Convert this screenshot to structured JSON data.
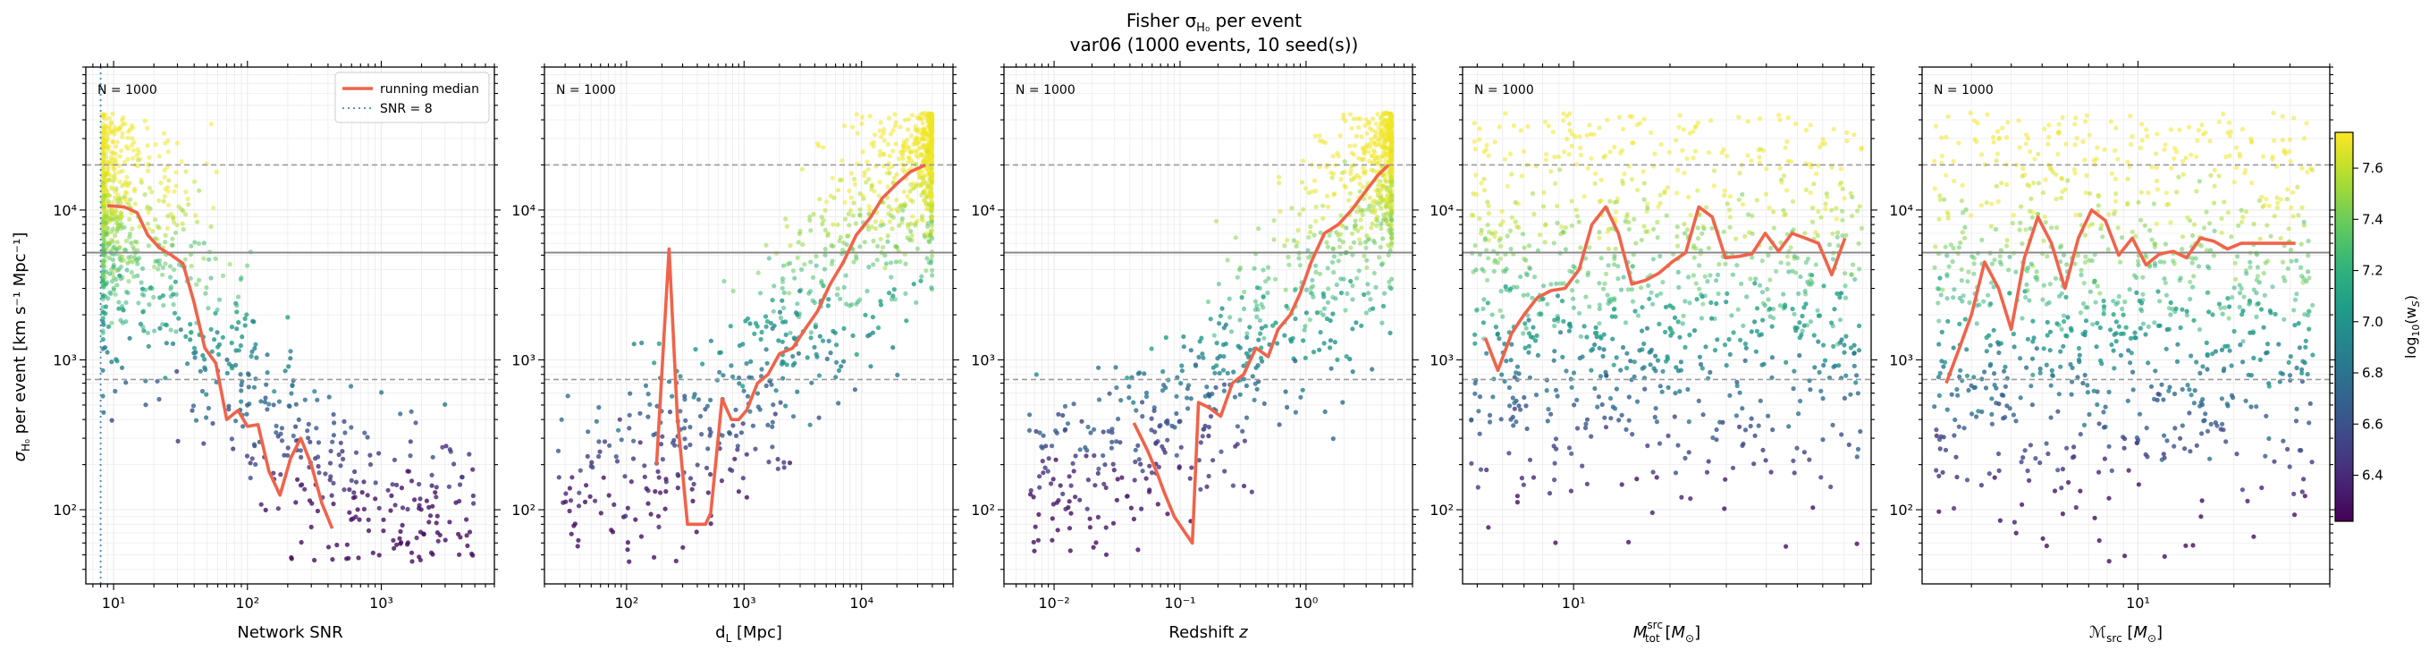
{
  "figure": {
    "title_line1": "Fisher σ",
    "title_sub": "H₀",
    "title_line1_tail": " per event",
    "title_line2": "var06  (1000 events, 10 seed(s))"
  },
  "shared": {
    "ylabel": "σ_H0 per event [km s⁻¹ Mpc⁻¹]",
    "ylabel_main": "σ",
    "ylabel_sub": "H₀",
    "ylabel_tail": " per event [km s⁻¹ Mpc⁻¹]",
    "ylim": [
      32,
      90000
    ],
    "yticks": [
      {
        "v": 100,
        "label": "10²"
      },
      {
        "v": 1000,
        "label": "10³"
      },
      {
        "v": 10000,
        "label": "10⁴"
      }
    ],
    "hlines": [
      {
        "value": 20000,
        "style": "dashed",
        "color": "#9a9a9a"
      },
      {
        "value": 5200,
        "style": "solid",
        "color": "#8a8a8a"
      },
      {
        "value": 740,
        "style": "dashed",
        "color": "#9a9a9a"
      }
    ],
    "n_label": "N = 1000",
    "median_color": "#f0634a",
    "colormap": "viridis"
  },
  "legend": {
    "items": [
      {
        "label": "running median",
        "color": "#f0634a",
        "style": "solid"
      },
      {
        "label": "SNR = 8",
        "color": "#4b87b5",
        "style": "dotted"
      }
    ]
  },
  "colorbar": {
    "label": "log₁₀(w_S)",
    "label_main": "log",
    "label_sub": "10",
    "label_tail": "(w",
    "label_sub2": "S",
    "label_end": ")",
    "range": [
      6.22,
      7.74
    ],
    "ticks": [
      {
        "v": 6.4,
        "label": "6.4"
      },
      {
        "v": 6.6,
        "label": "6.6"
      },
      {
        "v": 6.8,
        "label": "6.8"
      },
      {
        "v": 7.0,
        "label": "7.0"
      },
      {
        "v": 7.2,
        "label": "7.2"
      },
      {
        "v": 7.4,
        "label": "7.4"
      },
      {
        "v": 7.6,
        "label": "7.6"
      }
    ]
  },
  "chart_data": [
    {
      "type": "scatter",
      "id": "snr",
      "xlabel": "Network SNR",
      "xlabel_parts": [
        {
          "t": "Network SNR"
        }
      ],
      "xscale": "log",
      "xlim": [
        6.2,
        7000
      ],
      "xticks": [
        {
          "v": 10,
          "label": "10¹"
        },
        {
          "v": 100,
          "label": "10²"
        },
        {
          "v": 1000,
          "label": "10³"
        }
      ],
      "vline": {
        "value": 8,
        "label": "SNR = 8"
      },
      "running_median": {
        "x": [
          9,
          12,
          15,
          18,
          22,
          27,
          33,
          40,
          48,
          58,
          70,
          85,
          100,
          120,
          145,
          175,
          210,
          250,
          300,
          360,
          430
        ],
        "y": [
          10700,
          10500,
          9600,
          6800,
          5600,
          5000,
          4400,
          2400,
          1200,
          950,
          400,
          460,
          360,
          370,
          180,
          125,
          220,
          300,
          200,
          110,
          75
        ]
      },
      "cloud": {
        "x_anchor": [
          9,
          12,
          18,
          28,
          45,
          80,
          150,
          400,
          1500,
          5000
        ],
        "logy_center": [
          4.0,
          3.9,
          3.8,
          3.65,
          3.4,
          3.0,
          2.6,
          2.2,
          2.0,
          2.0
        ],
        "logy_spread": [
          0.45,
          0.45,
          0.45,
          0.45,
          0.45,
          0.45,
          0.35,
          0.3,
          0.3,
          0.3
        ],
        "logx_range": [
          0.92,
          3.7
        ],
        "skew": 3.2
      }
    },
    {
      "type": "scatter",
      "id": "dl",
      "xlabel": "d_L [Mpc]",
      "xlabel_parts": [
        {
          "t": "d"
        },
        {
          "t": "L",
          "sub": true
        },
        {
          "t": " [Mpc]"
        }
      ],
      "xscale": "log",
      "xlim": [
        20,
        60000
      ],
      "xticks": [
        {
          "v": 100,
          "label": "10²"
        },
        {
          "v": 1000,
          "label": "10³"
        },
        {
          "v": 10000,
          "label": "10⁴"
        }
      ],
      "running_median": {
        "x": [
          180,
          230,
          270,
          330,
          380,
          470,
          520,
          650,
          780,
          900,
          1050,
          1300,
          1600,
          2000,
          2600,
          3300,
          4200,
          5400,
          7000,
          9000,
          12000,
          15000,
          20000,
          26000,
          35000
        ],
        "y": [
          200,
          5500,
          420,
          80,
          80,
          80,
          95,
          550,
          400,
          400,
          460,
          700,
          800,
          1100,
          1200,
          1600,
          2100,
          3200,
          4500,
          6800,
          9000,
          12000,
          15000,
          18000,
          20000
        ]
      },
      "cloud": {
        "x_anchor": [
          30,
          100,
          300,
          1000,
          3000,
          10000,
          40000
        ],
        "logy_center": [
          2.2,
          2.3,
          2.5,
          2.8,
          3.3,
          3.9,
          4.4
        ],
        "logy_spread": [
          0.3,
          0.3,
          0.3,
          0.35,
          0.4,
          0.45,
          0.35
        ],
        "logx_range": [
          1.4,
          4.6
        ],
        "skew": -3.0
      }
    },
    {
      "type": "scatter",
      "id": "z",
      "xlabel": "Redshift z",
      "xlabel_parts": [
        {
          "t": "Redshift "
        },
        {
          "t": "z",
          "italic": true
        }
      ],
      "xscale": "log",
      "xlim": [
        0.004,
        7
      ],
      "xticks": [
        {
          "v": 0.01,
          "label": "10⁻²"
        },
        {
          "v": 0.1,
          "label": "10⁻¹"
        },
        {
          "v": 1,
          "label": "10⁰"
        }
      ],
      "running_median": {
        "x": [
          0.043,
          0.055,
          0.065,
          0.075,
          0.09,
          0.11,
          0.125,
          0.14,
          0.17,
          0.21,
          0.26,
          0.32,
          0.4,
          0.5,
          0.6,
          0.75,
          0.9,
          1.1,
          1.4,
          1.8,
          2.3,
          2.9,
          3.7,
          4.5
        ],
        "y": [
          380,
          250,
          180,
          130,
          90,
          70,
          60,
          520,
          480,
          420,
          700,
          800,
          1200,
          1050,
          1600,
          2000,
          2800,
          4500,
          7000,
          8000,
          10000,
          13000,
          17000,
          20000
        ]
      },
      "cloud": {
        "x_anchor": [
          0.006,
          0.02,
          0.06,
          0.2,
          0.6,
          2,
          5
        ],
        "logy_center": [
          2.2,
          2.3,
          2.5,
          2.9,
          3.3,
          3.9,
          4.4
        ],
        "logy_spread": [
          0.3,
          0.3,
          0.3,
          0.35,
          0.4,
          0.45,
          0.35
        ],
        "logx_range": [
          -2.2,
          0.68
        ],
        "skew": -3.0
      }
    },
    {
      "type": "scatter",
      "id": "mtot",
      "xlabel": "M_tot^src [M_⊙]",
      "xlabel_parts": [
        {
          "t": "M",
          "italic": true
        },
        {
          "t": "tot",
          "sub": true,
          "sup": "src"
        },
        {
          "t": " ["
        },
        {
          "t": "M",
          "italic": true
        },
        {
          "t": "⊙",
          "sub": true
        },
        {
          "t": "]"
        }
      ],
      "xscale": "log",
      "xlim": [
        4.5,
        85
      ],
      "xticks": [
        {
          "v": 10,
          "label": "10¹"
        }
      ],
      "running_median": {
        "x": [
          5.3,
          5.8,
          6.4,
          7.0,
          7.7,
          8.5,
          9.4,
          10.4,
          11.4,
          12.6,
          13.8,
          15.2,
          16.8,
          18.5,
          20.3,
          22.4,
          24.6,
          27.1,
          29.8,
          32.8,
          36.1,
          39.7,
          43.7,
          48.1,
          52.9,
          58.2,
          64.0,
          70.4
        ],
        "y": [
          1400,
          850,
          1500,
          2000,
          2600,
          2900,
          3000,
          4000,
          8000,
          10500,
          7000,
          3200,
          3400,
          3800,
          4500,
          5200,
          10500,
          9000,
          4800,
          4900,
          5100,
          7000,
          5300,
          7000,
          6500,
          6000,
          3700,
          6500
        ]
      },
      "cloud": {
        "x_anchor": [
          5,
          10,
          20,
          40,
          80
        ],
        "logy_center": [
          3.4,
          3.5,
          3.5,
          3.5,
          3.5
        ],
        "logy_spread": [
          0.7,
          0.7,
          0.7,
          0.7,
          0.7
        ],
        "logx_range": [
          0.68,
          1.9
        ],
        "skew": 0
      }
    },
    {
      "type": "scatter",
      "id": "mchirp",
      "xlabel": "ℳ_src [M_⊙]",
      "xlabel_parts": [
        {
          "t": "ℳ",
          "italic": true
        },
        {
          "t": "src",
          "sub": true
        },
        {
          "t": " ["
        },
        {
          "t": "M",
          "italic": true
        },
        {
          "t": "⊙",
          "sub": true
        },
        {
          "t": "]"
        }
      ],
      "xscale": "log",
      "xlim": [
        2.1,
        40
      ],
      "xticks": [
        {
          "v": 10,
          "label": "10¹"
        }
      ],
      "running_median": {
        "x": [
          2.5,
          2.75,
          3.0,
          3.3,
          3.65,
          4.0,
          4.4,
          4.85,
          5.35,
          5.9,
          6.5,
          7.15,
          7.9,
          8.7,
          9.6,
          10.6,
          11.7,
          12.9,
          14.2,
          15.7,
          17.3,
          19.1,
          21.1,
          23.3,
          25.7,
          28.3,
          31.2
        ],
        "y": [
          700,
          1200,
          2000,
          4500,
          3000,
          1600,
          4800,
          9000,
          6000,
          3000,
          6500,
          10000,
          8500,
          5000,
          6500,
          4300,
          5100,
          5300,
          4800,
          6500,
          6200,
          5500,
          6000,
          6000,
          6000,
          6000,
          6000
        ]
      },
      "cloud": {
        "x_anchor": [
          2.3,
          5,
          10,
          20,
          35
        ],
        "logy_center": [
          3.4,
          3.5,
          3.5,
          3.5,
          3.5
        ],
        "logy_spread": [
          0.7,
          0.7,
          0.7,
          0.7,
          0.7
        ],
        "logx_range": [
          0.36,
          1.55
        ],
        "skew": 0
      }
    }
  ]
}
